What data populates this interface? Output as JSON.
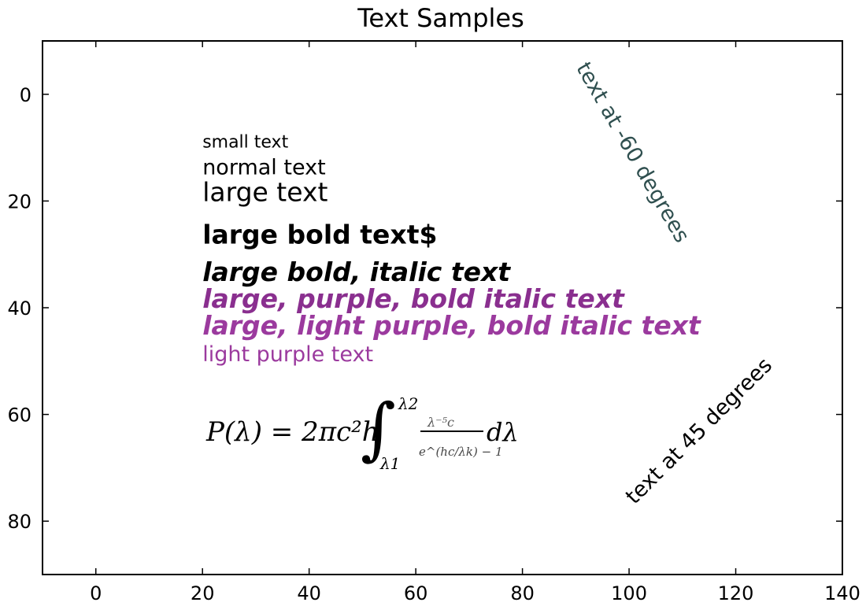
{
  "chart_data": {
    "type": "scatter",
    "title": "Text Samples",
    "xlabel": "",
    "ylabel": "",
    "xlim": [
      -10,
      140
    ],
    "ylim": [
      90,
      -10
    ],
    "y_inverted": true,
    "grid": false,
    "x_ticks": [
      0,
      20,
      40,
      60,
      80,
      100,
      120,
      140
    ],
    "y_ticks": [
      0,
      20,
      40,
      60,
      80
    ],
    "x_tick_labels": [
      "0",
      "20",
      "40",
      "60",
      "80",
      "100",
      "120",
      "140"
    ],
    "y_tick_labels": [
      "0",
      "20",
      "40",
      "60",
      "80"
    ],
    "annotations": [
      {
        "id": "small",
        "text": "small text",
        "x": 20,
        "y": 10,
        "size": "small",
        "weight": "normal",
        "style": "normal",
        "color": "#000000",
        "rotation": 0
      },
      {
        "id": "normal",
        "text": "normal text",
        "x": 20,
        "y": 15,
        "size": "normal",
        "weight": "normal",
        "style": "normal",
        "color": "#000000",
        "rotation": 0
      },
      {
        "id": "large",
        "text": "large text",
        "x": 20,
        "y": 20,
        "size": "large",
        "weight": "normal",
        "style": "normal",
        "color": "#000000",
        "rotation": 0
      },
      {
        "id": "large-bold",
        "text": "large bold text$",
        "x": 20,
        "y": 28,
        "size": "large",
        "weight": "bold",
        "style": "normal",
        "color": "#000000",
        "rotation": 0
      },
      {
        "id": "large-bold-italic",
        "text": "large bold, italic text",
        "x": 20,
        "y": 35,
        "size": "large",
        "weight": "bold",
        "style": "italic",
        "color": "#000000",
        "rotation": 0
      },
      {
        "id": "purple-bold-italic",
        "text": "large, purple, bold italic text",
        "x": 20,
        "y": 40,
        "size": "large",
        "weight": "bold",
        "style": "italic",
        "color": "#8a2f8f",
        "rotation": 0
      },
      {
        "id": "light-purple-bold-italic",
        "text": "large, light purple, bold italic text",
        "x": 20,
        "y": 45,
        "size": "large",
        "weight": "bold",
        "style": "italic",
        "color": "#9b3a9e",
        "rotation": 0
      },
      {
        "id": "light-purple",
        "text": "light purple text",
        "x": 20,
        "y": 50,
        "size": "normal",
        "weight": "normal",
        "style": "normal",
        "color": "#9b3a9e",
        "rotation": 0
      },
      {
        "id": "rot-neg60",
        "text": "text at -60 degrees",
        "x": 90,
        "y": -5,
        "size": "normal",
        "weight": "normal",
        "style": "normal",
        "color": "#2f4f4f",
        "rotation": 60
      },
      {
        "id": "rot-45",
        "text": "text at 45 degrees",
        "x": 101,
        "y": 77,
        "size": "normal",
        "weight": "normal",
        "style": "normal",
        "color": "#000000",
        "rotation": -45
      }
    ],
    "equation": {
      "lhs": "P(λ) = 2πc²h",
      "integral": "∫",
      "upper": "λ2",
      "lower": "λ1",
      "numerator": "λ⁻⁵c",
      "denominator": "e^(hc/λk) − 1",
      "tail": "dλ"
    }
  },
  "colors": {
    "axes": "#000000",
    "purple": "#8a2f8f",
    "light_purple": "#9b3a9e",
    "slate": "#2f4f4f"
  }
}
